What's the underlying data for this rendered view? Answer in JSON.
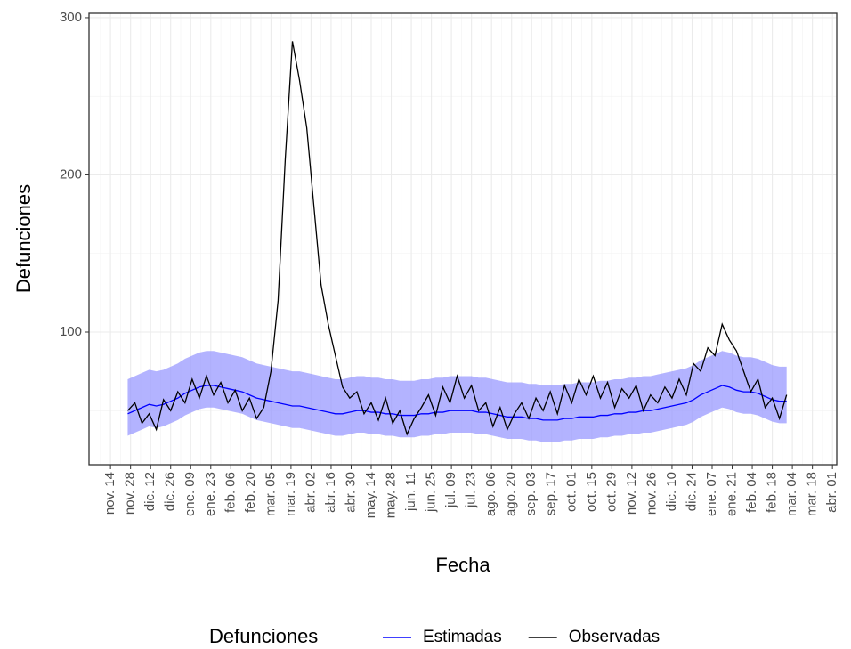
{
  "chart_data": {
    "type": "line",
    "x_label": "Fecha",
    "y_label": "Defunciones",
    "legend_title": "Defunciones",
    "legend_position": "bottom",
    "grid": true,
    "x": [
      12,
      17,
      22,
      27,
      32,
      37,
      42,
      47,
      52,
      57,
      62,
      67,
      72,
      77,
      82,
      87,
      92,
      97,
      102,
      107,
      112,
      117,
      122,
      127,
      132,
      137,
      142,
      147,
      152,
      157,
      162,
      167,
      172,
      177,
      182,
      187,
      192,
      197,
      202,
      207,
      212,
      217,
      222,
      227,
      232,
      237,
      242,
      247,
      252,
      257,
      262,
      267,
      272,
      277,
      282,
      287,
      292,
      297,
      302,
      307,
      312,
      317,
      322,
      327,
      332,
      337,
      342,
      347,
      352,
      357,
      362,
      367,
      372,
      377,
      382,
      387,
      392,
      397,
      402,
      407,
      412,
      417,
      422,
      427,
      432,
      437,
      442,
      447,
      452,
      457,
      462,
      467,
      472
    ],
    "xlim": [
      -15,
      507
    ],
    "xticks": [
      {
        "value": 0,
        "label": "nov. 14"
      },
      {
        "value": 14,
        "label": "nov. 28"
      },
      {
        "value": 28,
        "label": "dic. 12"
      },
      {
        "value": 42,
        "label": "dic. 26"
      },
      {
        "value": 56,
        "label": "ene. 09"
      },
      {
        "value": 70,
        "label": "ene. 23"
      },
      {
        "value": 84,
        "label": "feb. 06"
      },
      {
        "value": 98,
        "label": "feb. 20"
      },
      {
        "value": 112,
        "label": "mar. 05"
      },
      {
        "value": 126,
        "label": "mar. 19"
      },
      {
        "value": 140,
        "label": "abr. 02"
      },
      {
        "value": 154,
        "label": "abr. 16"
      },
      {
        "value": 168,
        "label": "abr. 30"
      },
      {
        "value": 182,
        "label": "may. 14"
      },
      {
        "value": 196,
        "label": "may. 28"
      },
      {
        "value": 210,
        "label": "jun. 11"
      },
      {
        "value": 224,
        "label": "jun. 25"
      },
      {
        "value": 238,
        "label": "jul. 09"
      },
      {
        "value": 252,
        "label": "jul. 23"
      },
      {
        "value": 266,
        "label": "ago. 06"
      },
      {
        "value": 280,
        "label": "ago. 20"
      },
      {
        "value": 294,
        "label": "sep. 03"
      },
      {
        "value": 308,
        "label": "sep. 17"
      },
      {
        "value": 322,
        "label": "oct. 01"
      },
      {
        "value": 336,
        "label": "oct. 15"
      },
      {
        "value": 350,
        "label": "oct. 29"
      },
      {
        "value": 364,
        "label": "nov. 12"
      },
      {
        "value": 378,
        "label": "nov. 26"
      },
      {
        "value": 392,
        "label": "dic. 10"
      },
      {
        "value": 406,
        "label": "dic. 24"
      },
      {
        "value": 420,
        "label": "ene. 07"
      },
      {
        "value": 434,
        "label": "ene. 21"
      },
      {
        "value": 448,
        "label": "feb. 04"
      },
      {
        "value": 462,
        "label": "feb. 18"
      },
      {
        "value": 476,
        "label": "mar. 04"
      },
      {
        "value": 490,
        "label": "mar. 18"
      },
      {
        "value": 504,
        "label": "abr. 01"
      }
    ],
    "ylim": [
      15.6,
      302.8
    ],
    "yticks": [
      100,
      200,
      300
    ],
    "series": [
      {
        "name": "Estimadas",
        "color": "#0000ff",
        "band_color": "#9999ff",
        "values": [
          48,
          50,
          52,
          54,
          53,
          54,
          56,
          58,
          61,
          63,
          65,
          66,
          66,
          65,
          64,
          63,
          62,
          60,
          58,
          57,
          56,
          55,
          54,
          53,
          53,
          52,
          51,
          50,
          49,
          48,
          48,
          49,
          50,
          50,
          49,
          49,
          48,
          48,
          47,
          47,
          47,
          48,
          48,
          49,
          49,
          50,
          50,
          50,
          50,
          49,
          49,
          48,
          47,
          46,
          46,
          46,
          45,
          45,
          44,
          44,
          44,
          45,
          45,
          46,
          46,
          46,
          47,
          47,
          48,
          48,
          49,
          49,
          50,
          50,
          51,
          52,
          53,
          54,
          55,
          57,
          60,
          62,
          64,
          66,
          65,
          63,
          62,
          62,
          61,
          59,
          57,
          56,
          56
        ],
        "lower": [
          34,
          36,
          38,
          40,
          39,
          40,
          42,
          44,
          47,
          49,
          51,
          52,
          52,
          51,
          50,
          49,
          48,
          46,
          44,
          43,
          42,
          41,
          40,
          39,
          39,
          38,
          37,
          36,
          35,
          34,
          34,
          35,
          36,
          36,
          35,
          35,
          34,
          34,
          33,
          33,
          33,
          34,
          34,
          35,
          35,
          36,
          36,
          36,
          36,
          35,
          35,
          34,
          33,
          32,
          32,
          32,
          31,
          31,
          30,
          30,
          30,
          31,
          31,
          32,
          32,
          32,
          33,
          33,
          34,
          34,
          35,
          35,
          36,
          36,
          37,
          38,
          39,
          40,
          41,
          43,
          46,
          48,
          50,
          52,
          51,
          49,
          48,
          48,
          47,
          45,
          43,
          42,
          42
        ],
        "upper": [
          70,
          72,
          74,
          76,
          75,
          76,
          78,
          80,
          83,
          85,
          87,
          88,
          88,
          87,
          86,
          85,
          84,
          82,
          80,
          79,
          78,
          77,
          76,
          75,
          75,
          74,
          73,
          72,
          71,
          70,
          70,
          71,
          72,
          72,
          71,
          71,
          70,
          70,
          69,
          69,
          69,
          70,
          70,
          71,
          71,
          72,
          72,
          72,
          72,
          71,
          71,
          70,
          69,
          68,
          68,
          68,
          67,
          67,
          66,
          66,
          66,
          67,
          67,
          68,
          68,
          68,
          69,
          69,
          70,
          70,
          71,
          71,
          72,
          72,
          73,
          74,
          75,
          76,
          77,
          79,
          82,
          84,
          86,
          88,
          87,
          85,
          84,
          84,
          83,
          81,
          79,
          78,
          78
        ]
      },
      {
        "name": "Observadas",
        "color": "#000000",
        "values": [
          50,
          55,
          42,
          48,
          38,
          57,
          50,
          62,
          55,
          70,
          58,
          72,
          60,
          68,
          55,
          63,
          50,
          58,
          45,
          52,
          75,
          120,
          210,
          285,
          260,
          230,
          180,
          130,
          105,
          85,
          65,
          58,
          62,
          48,
          55,
          44,
          58,
          42,
          50,
          35,
          45,
          52,
          60,
          47,
          65,
          55,
          72,
          58,
          66,
          50,
          55,
          40,
          52,
          38,
          48,
          55,
          45,
          58,
          50,
          62,
          48,
          66,
          55,
          70,
          60,
          72,
          58,
          68,
          52,
          64,
          58,
          66,
          50,
          60,
          55,
          65,
          58,
          70,
          60,
          80,
          75,
          90,
          85,
          105,
          95,
          88,
          75,
          62,
          70,
          52,
          58,
          45,
          60
        ]
      }
    ]
  }
}
